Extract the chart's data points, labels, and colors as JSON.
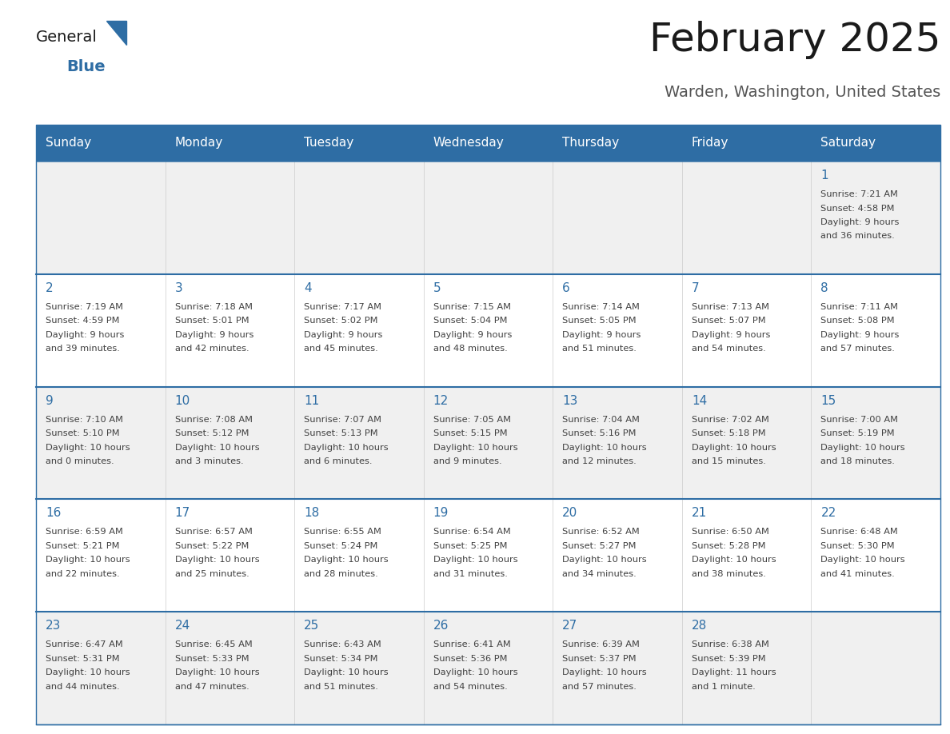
{
  "title": "February 2025",
  "subtitle": "Warden, Washington, United States",
  "days_of_week": [
    "Sunday",
    "Monday",
    "Tuesday",
    "Wednesday",
    "Thursday",
    "Friday",
    "Saturday"
  ],
  "header_bg": "#2E6DA4",
  "header_text": "#FFFFFF",
  "cell_bg_row0": "#F0F0F0",
  "cell_bg_row1": "#FFFFFF",
  "cell_bg_row2": "#F0F0F0",
  "cell_bg_row3": "#FFFFFF",
  "cell_bg_row4": "#F0F0F0",
  "row_separator_color": "#2E6DA4",
  "cell_border_color": "#CCCCCC",
  "day_number_color": "#2E6DA4",
  "info_text_color": "#404040",
  "title_color": "#1a1a1a",
  "subtitle_color": "#555555",
  "logo_general_color": "#1a1a1a",
  "logo_blue_color": "#2E6DA4",
  "calendar": [
    [
      null,
      null,
      null,
      null,
      null,
      null,
      1
    ],
    [
      2,
      3,
      4,
      5,
      6,
      7,
      8
    ],
    [
      9,
      10,
      11,
      12,
      13,
      14,
      15
    ],
    [
      16,
      17,
      18,
      19,
      20,
      21,
      22
    ],
    [
      23,
      24,
      25,
      26,
      27,
      28,
      null
    ]
  ],
  "day_data": {
    "1": {
      "sunrise": "7:21 AM",
      "sunset": "4:58 PM",
      "daylight_h": "9 hours",
      "daylight_m": "and 36 minutes."
    },
    "2": {
      "sunrise": "7:19 AM",
      "sunset": "4:59 PM",
      "daylight_h": "9 hours",
      "daylight_m": "and 39 minutes."
    },
    "3": {
      "sunrise": "7:18 AM",
      "sunset": "5:01 PM",
      "daylight_h": "9 hours",
      "daylight_m": "and 42 minutes."
    },
    "4": {
      "sunrise": "7:17 AM",
      "sunset": "5:02 PM",
      "daylight_h": "9 hours",
      "daylight_m": "and 45 minutes."
    },
    "5": {
      "sunrise": "7:15 AM",
      "sunset": "5:04 PM",
      "daylight_h": "9 hours",
      "daylight_m": "and 48 minutes."
    },
    "6": {
      "sunrise": "7:14 AM",
      "sunset": "5:05 PM",
      "daylight_h": "9 hours",
      "daylight_m": "and 51 minutes."
    },
    "7": {
      "sunrise": "7:13 AM",
      "sunset": "5:07 PM",
      "daylight_h": "9 hours",
      "daylight_m": "and 54 minutes."
    },
    "8": {
      "sunrise": "7:11 AM",
      "sunset": "5:08 PM",
      "daylight_h": "9 hours",
      "daylight_m": "and 57 minutes."
    },
    "9": {
      "sunrise": "7:10 AM",
      "sunset": "5:10 PM",
      "daylight_h": "10 hours",
      "daylight_m": "and 0 minutes."
    },
    "10": {
      "sunrise": "7:08 AM",
      "sunset": "5:12 PM",
      "daylight_h": "10 hours",
      "daylight_m": "and 3 minutes."
    },
    "11": {
      "sunrise": "7:07 AM",
      "sunset": "5:13 PM",
      "daylight_h": "10 hours",
      "daylight_m": "and 6 minutes."
    },
    "12": {
      "sunrise": "7:05 AM",
      "sunset": "5:15 PM",
      "daylight_h": "10 hours",
      "daylight_m": "and 9 minutes."
    },
    "13": {
      "sunrise": "7:04 AM",
      "sunset": "5:16 PM",
      "daylight_h": "10 hours",
      "daylight_m": "and 12 minutes."
    },
    "14": {
      "sunrise": "7:02 AM",
      "sunset": "5:18 PM",
      "daylight_h": "10 hours",
      "daylight_m": "and 15 minutes."
    },
    "15": {
      "sunrise": "7:00 AM",
      "sunset": "5:19 PM",
      "daylight_h": "10 hours",
      "daylight_m": "and 18 minutes."
    },
    "16": {
      "sunrise": "6:59 AM",
      "sunset": "5:21 PM",
      "daylight_h": "10 hours",
      "daylight_m": "and 22 minutes."
    },
    "17": {
      "sunrise": "6:57 AM",
      "sunset": "5:22 PM",
      "daylight_h": "10 hours",
      "daylight_m": "and 25 minutes."
    },
    "18": {
      "sunrise": "6:55 AM",
      "sunset": "5:24 PM",
      "daylight_h": "10 hours",
      "daylight_m": "and 28 minutes."
    },
    "19": {
      "sunrise": "6:54 AM",
      "sunset": "5:25 PM",
      "daylight_h": "10 hours",
      "daylight_m": "and 31 minutes."
    },
    "20": {
      "sunrise": "6:52 AM",
      "sunset": "5:27 PM",
      "daylight_h": "10 hours",
      "daylight_m": "and 34 minutes."
    },
    "21": {
      "sunrise": "6:50 AM",
      "sunset": "5:28 PM",
      "daylight_h": "10 hours",
      "daylight_m": "and 38 minutes."
    },
    "22": {
      "sunrise": "6:48 AM",
      "sunset": "5:30 PM",
      "daylight_h": "10 hours",
      "daylight_m": "and 41 minutes."
    },
    "23": {
      "sunrise": "6:47 AM",
      "sunset": "5:31 PM",
      "daylight_h": "10 hours",
      "daylight_m": "and 44 minutes."
    },
    "24": {
      "sunrise": "6:45 AM",
      "sunset": "5:33 PM",
      "daylight_h": "10 hours",
      "daylight_m": "and 47 minutes."
    },
    "25": {
      "sunrise": "6:43 AM",
      "sunset": "5:34 PM",
      "daylight_h": "10 hours",
      "daylight_m": "and 51 minutes."
    },
    "26": {
      "sunrise": "6:41 AM",
      "sunset": "5:36 PM",
      "daylight_h": "10 hours",
      "daylight_m": "and 54 minutes."
    },
    "27": {
      "sunrise": "6:39 AM",
      "sunset": "5:37 PM",
      "daylight_h": "10 hours",
      "daylight_m": "and 57 minutes."
    },
    "28": {
      "sunrise": "6:38 AM",
      "sunset": "5:39 PM",
      "daylight_h": "11 hours",
      "daylight_m": "and 1 minute."
    }
  },
  "fig_width": 11.88,
  "fig_height": 9.18,
  "dpi": 100
}
